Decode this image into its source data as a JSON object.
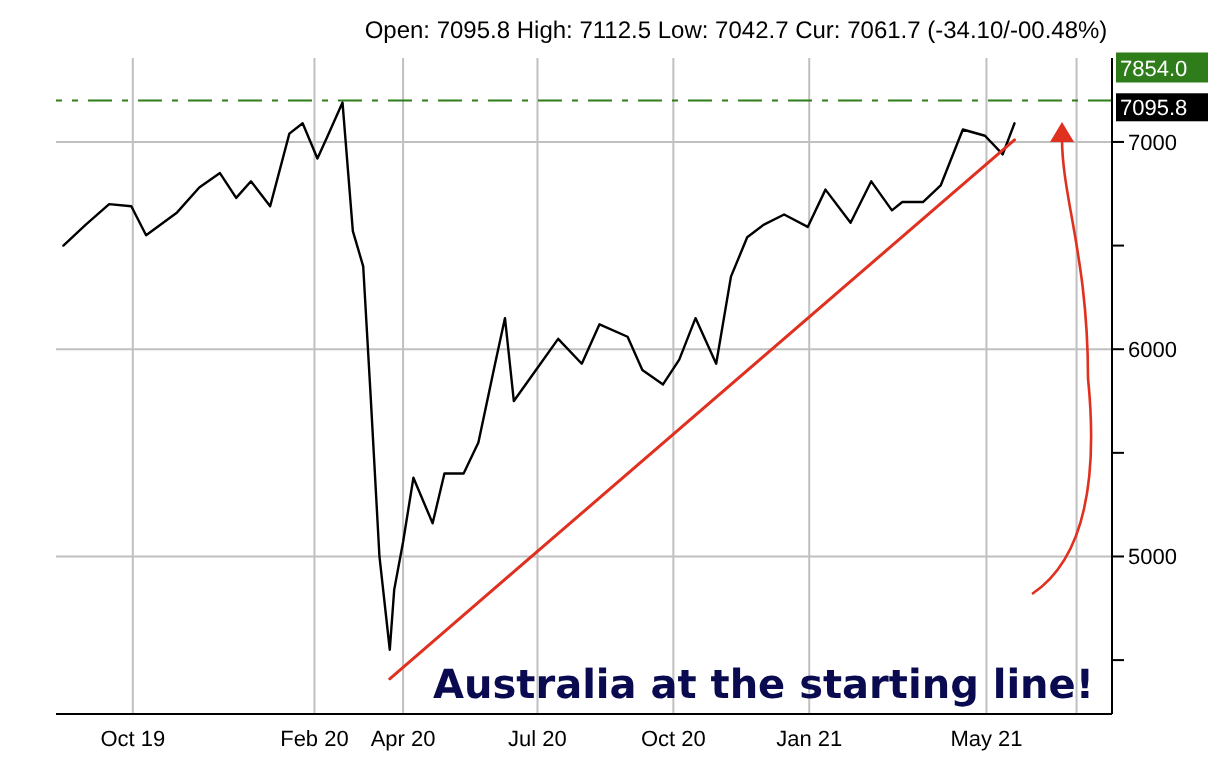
{
  "chart_data": {
    "type": "line",
    "subtitle": "Open: 7095.8 High: 7112.5 Low: 7042.7 Cur: 7061.7 (-34.10/-00.48%)",
    "x": [
      "2019-08-15",
      "2019-08-30",
      "2019-09-15",
      "2019-09-30",
      "2019-10-10",
      "2019-10-31",
      "2019-11-15",
      "2019-11-29",
      "2019-12-10",
      "2019-12-20",
      "2020-01-02",
      "2020-01-15",
      "2020-01-24",
      "2020-02-03",
      "2020-02-10",
      "2020-02-20",
      "2020-02-27",
      "2020-03-05",
      "2020-03-10",
      "2020-03-16",
      "2020-03-23",
      "2020-03-26",
      "2020-04-01",
      "2020-04-08",
      "2020-04-21",
      "2020-04-29",
      "2020-05-12",
      "2020-05-22",
      "2020-06-02",
      "2020-06-09",
      "2020-06-15",
      "2020-06-30",
      "2020-07-15",
      "2020-07-31",
      "2020-08-12",
      "2020-08-31",
      "2020-09-10",
      "2020-09-24",
      "2020-10-05",
      "2020-10-16",
      "2020-10-30",
      "2020-11-09",
      "2020-11-20",
      "2020-12-01",
      "2020-12-15",
      "2020-12-31",
      "2021-01-12",
      "2021-01-29",
      "2021-02-12",
      "2021-02-26",
      "2021-03-05",
      "2021-03-19",
      "2021-03-31",
      "2021-04-15",
      "2021-04-30",
      "2021-05-12",
      "2021-05-20"
    ],
    "series": [
      {
        "color": "#000000",
        "values": [
          6500,
          6600,
          6700,
          6690,
          6550,
          6660,
          6780,
          6850,
          6730,
          6810,
          6690,
          7040,
          7090,
          6920,
          7030,
          7190,
          6570,
          6400,
          5780,
          5000,
          4550,
          4840,
          5070,
          5380,
          5160,
          5400,
          5400,
          5550,
          5920,
          6150,
          5750,
          5900,
          6050,
          5930,
          6120,
          6060,
          5900,
          5830,
          5950,
          6150,
          5930,
          6350,
          6540,
          6600,
          6650,
          6590,
          6770,
          6610,
          6810,
          6670,
          6710,
          6710,
          6790,
          7060,
          7030,
          6940,
          7090
        ]
      },
      {
        "type": "line",
        "color": "#e03020",
        "x": [
          "2020-03-23",
          "2021-05-20"
        ],
        "values": [
          4410,
          7010
        ]
      }
    ],
    "xlim": [
      "2019-08-10",
      "2021-07-25"
    ],
    "xticks": [
      {
        "value": "2019-10-01",
        "label": "Oct 19"
      },
      {
        "value": "2020-02-01",
        "label": "Feb 20"
      },
      {
        "value": "2020-04-01",
        "label": "Apr 20"
      },
      {
        "value": "2020-07-01",
        "label": "Jul 20"
      },
      {
        "value": "2020-10-01",
        "label": "Oct 20"
      },
      {
        "value": "2021-01-01",
        "label": "Jan 21"
      },
      {
        "value": "2021-05-01",
        "label": "May 21"
      },
      {
        "value": "2021-07-01",
        "label": null
      }
    ],
    "ylim": [
      4240,
      7405
    ],
    "yticks": [
      {
        "value": 4500,
        "label": null
      },
      5000,
      {
        "value": 5500,
        "label": null
      },
      6000,
      {
        "value": 6500,
        "label": null
      },
      7000
    ],
    "grid": true,
    "ref_lines": [
      {
        "axis": "y",
        "value": 7200,
        "color": "#2e7d1a",
        "line_style": "dashed"
      }
    ],
    "annotations": [
      "7095.8",
      "7854.0",
      "Australia at the starting line!"
    ]
  }
}
